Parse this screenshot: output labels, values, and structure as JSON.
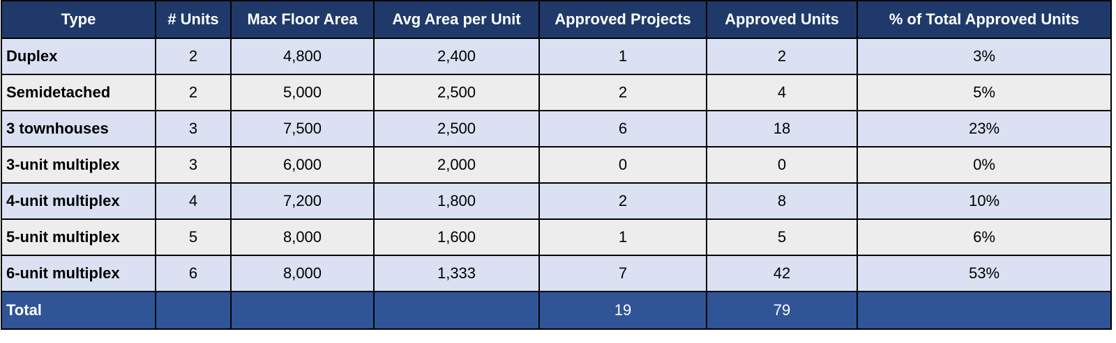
{
  "table": {
    "headers": [
      "Type",
      "# Units",
      "Max Floor Area",
      "Avg Area per Unit",
      "Approved Projects",
      "Approved Units",
      "% of Total Approved Units"
    ],
    "rows": [
      [
        "Duplex",
        "2",
        "4,800",
        "2,400",
        "1",
        "2",
        "3%"
      ],
      [
        "Semidetached",
        "2",
        "5,000",
        "2,500",
        "2",
        "4",
        "5%"
      ],
      [
        "3 townhouses",
        "3",
        "7,500",
        "2,500",
        "6",
        "18",
        "23%"
      ],
      [
        "3-unit multiplex",
        "3",
        "6,000",
        "2,000",
        "0",
        "0",
        "0%"
      ],
      [
        "4-unit multiplex",
        "4",
        "7,200",
        "1,800",
        "2",
        "8",
        "10%"
      ],
      [
        "5-unit multiplex",
        "5",
        "8,000",
        "1,600",
        "1",
        "5",
        "6%"
      ],
      [
        "6-unit multiplex",
        "6",
        "8,000",
        "1,333",
        "7",
        "42",
        "53%"
      ]
    ],
    "total": [
      "Total",
      "",
      "",
      "",
      "19",
      "79",
      ""
    ]
  },
  "colors": {
    "header_bg": "#1f3a6a",
    "total_bg": "#2f5597",
    "row_odd": "#d9e1f2",
    "row_even": "#ededed"
  }
}
